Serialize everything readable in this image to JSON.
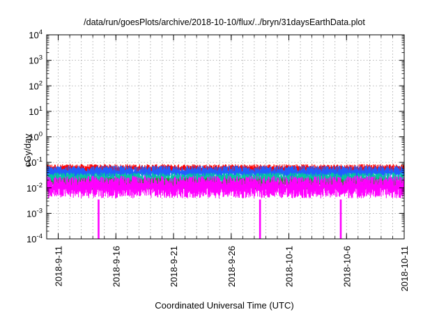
{
  "chart_data": {
    "type": "line",
    "title": "/data/run/goesPlots/archive/2018-10-10/flux/../bryn/31daysEarthData.plot",
    "xlabel": "Coordinated Universal Time (UTC)",
    "ylabel": "cGy/day",
    "y_scale": "log",
    "ylim": [
      0.0001,
      10000
    ],
    "xlim": [
      "2018-09-10",
      "2018-10-11"
    ],
    "grid": true,
    "legend": "none",
    "y_ticks": [
      {
        "value": 0.0001,
        "base": "10",
        "exp": "-4"
      },
      {
        "value": 0.001,
        "base": "10",
        "exp": "-3"
      },
      {
        "value": 0.01,
        "base": "10",
        "exp": "-2"
      },
      {
        "value": 0.1,
        "base": "10",
        "exp": "-1"
      },
      {
        "value": 1,
        "base": "10",
        "exp": "0"
      },
      {
        "value": 10,
        "base": "10",
        "exp": "1"
      },
      {
        "value": 100,
        "base": "10",
        "exp": "2"
      },
      {
        "value": 1000,
        "base": "10",
        "exp": "3"
      },
      {
        "value": 10000,
        "base": "10",
        "exp": "4"
      }
    ],
    "x_ticks": [
      "2018-9-11",
      "2018-9-16",
      "2018-9-21",
      "2018-9-26",
      "2018-10-1",
      "2018-10-6",
      "2018-10-11"
    ],
    "x_tick_dates": [
      "2018-09-11",
      "2018-09-16",
      "2018-09-21",
      "2018-09-26",
      "2018-10-01",
      "2018-10-06",
      "2018-10-11"
    ],
    "series": [
      {
        "color": "#ff0000",
        "band": [
          0.035,
          0.085
        ]
      },
      {
        "color": "#1f5fff",
        "band": [
          0.02,
          0.075
        ]
      },
      {
        "color": "#00c8a0",
        "band": [
          0.012,
          0.04
        ]
      },
      {
        "color": "#2e8b2e",
        "band": [
          0.008,
          0.025
        ]
      },
      {
        "color": "#ff00ff",
        "band": [
          0.0035,
          0.03
        ],
        "dips": [
          {
            "date": "2018-09-14",
            "value": 0.0001
          },
          {
            "date": "2018-09-28",
            "value": 0.0001
          },
          {
            "date": "2018-10-05",
            "value": 0.0001
          }
        ]
      }
    ]
  }
}
